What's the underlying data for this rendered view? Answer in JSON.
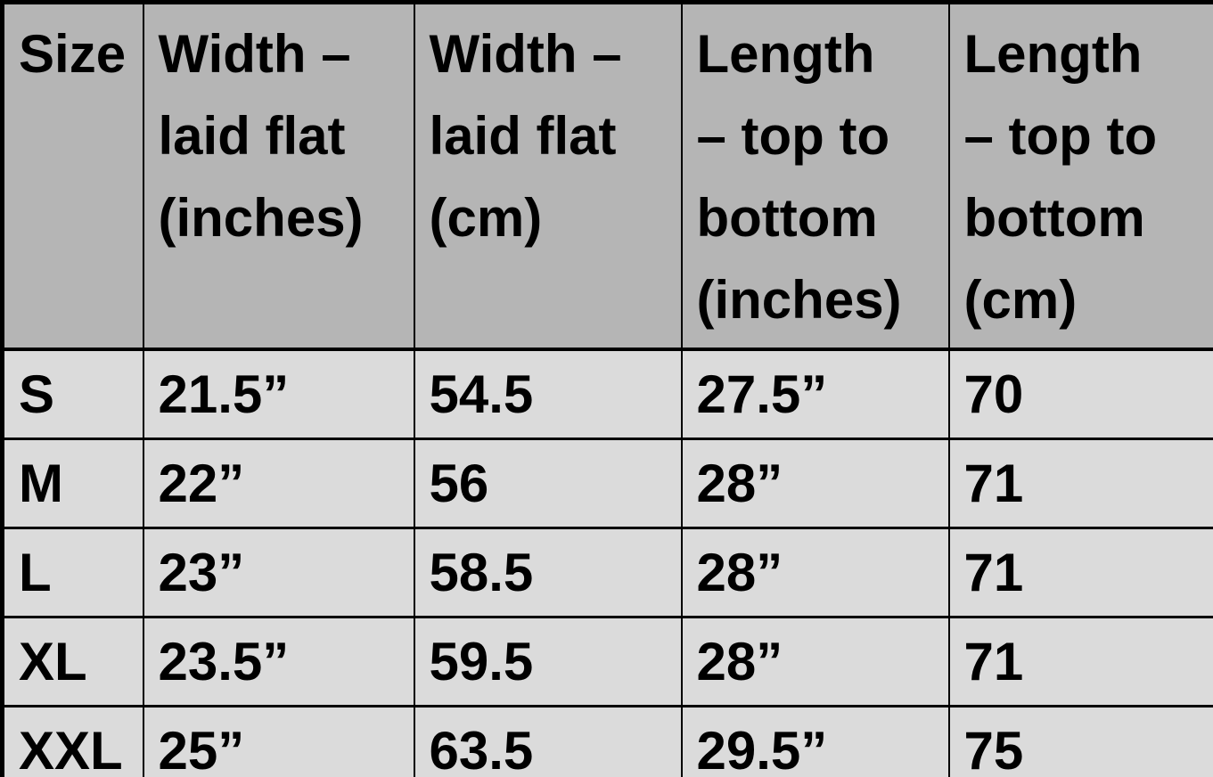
{
  "colors": {
    "header_background": "#b5b5b5",
    "row_background": "#dbdbdb",
    "border": "#000000",
    "text": "#000000"
  },
  "chart_data": {
    "type": "table",
    "columns": [
      "Size",
      "Width – laid flat (inches)",
      "Width – laid flat (cm)",
      "Length – top to bottom (inches)",
      "Length – top to bottom (cm)"
    ],
    "header_display": [
      "Size",
      "Width –\nlaid flat\n(inches)",
      "Width –\nlaid flat\n(cm)",
      "Length\n– top to\nbottom\n(inches)",
      "Length\n– top to\nbottom\n(cm)"
    ],
    "rows": [
      [
        "S",
        "21.5”",
        "54.5",
        "27.5”",
        "70"
      ],
      [
        "M",
        "22”",
        "56",
        "28”",
        "71"
      ],
      [
        "L",
        "23”",
        "58.5",
        "28”",
        "71"
      ],
      [
        "XL",
        "23.5”",
        "59.5",
        "28”",
        "71"
      ],
      [
        "XXL",
        "25”",
        "63.5",
        "29.5”",
        "75"
      ]
    ]
  }
}
